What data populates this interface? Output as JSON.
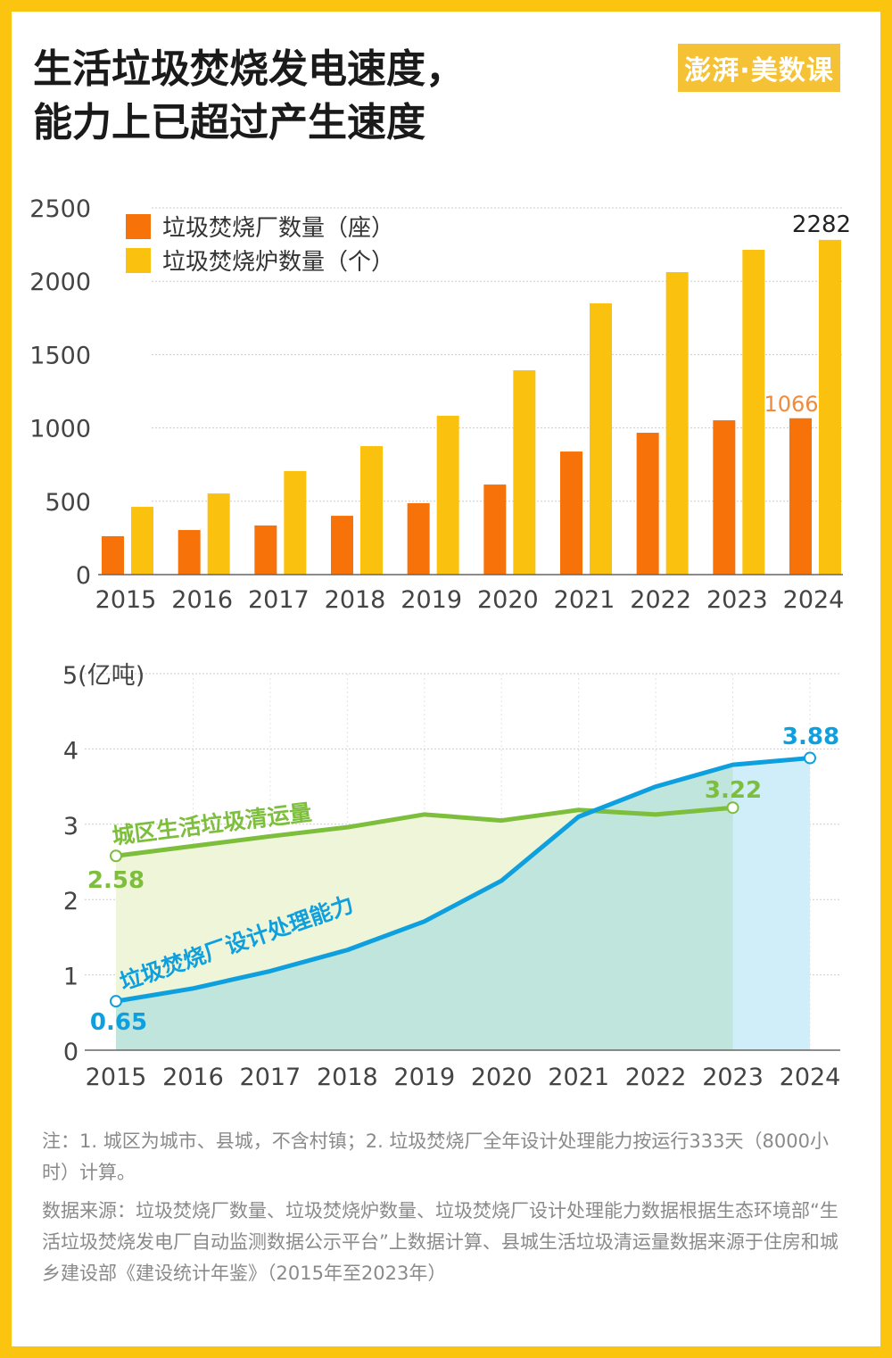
{
  "title_line1": "生活垃圾焚烧发电速度，",
  "title_line2": "能力上已超过产生速度",
  "logo": "澎湃·美数课",
  "chart_data": [
    {
      "type": "bar",
      "categories": [
        "2015",
        "2016",
        "2017",
        "2018",
        "2019",
        "2020",
        "2021",
        "2022",
        "2023",
        "2024"
      ],
      "series": [
        {
          "name": "垃圾焚烧厂数量（座）",
          "color": "#F7730A",
          "values": [
            262,
            304,
            335,
            401,
            487,
            614,
            839,
            967,
            1052,
            1066
          ]
        },
        {
          "name": "垃圾焚烧炉数量（个）",
          "color": "#FBC10F",
          "values": [
            462,
            553,
            706,
            876,
            1083,
            1393,
            1849,
            2062,
            2214,
            2282
          ]
        }
      ],
      "data_labels": {
        "orange_2024": "1066",
        "yellow_2024": "2282"
      },
      "yticks": [
        "0",
        "500",
        "1000",
        "1500",
        "2000",
        "2500"
      ],
      "ylim": [
        0,
        2500
      ],
      "grid": true,
      "legend": "top-left"
    },
    {
      "type": "line",
      "categories": [
        "2015",
        "2016",
        "2017",
        "2018",
        "2019",
        "2020",
        "2021",
        "2022",
        "2023",
        "2024"
      ],
      "ylabel_unit": "5(亿吨)",
      "yticks": [
        "0",
        "1",
        "2",
        "3",
        "4"
      ],
      "ylim": [
        0,
        5
      ],
      "grid": true,
      "series": [
        {
          "name": "城区生活垃圾清运量",
          "color": "#7DBE3C",
          "values": [
            2.58,
            2.71,
            2.84,
            2.96,
            3.13,
            3.05,
            3.19,
            3.13,
            3.22,
            null
          ],
          "start_label": "2.58",
          "end_label": "3.22"
        },
        {
          "name": "垃圾焚烧厂设计处理能力",
          "color": "#0EA0DE",
          "values": [
            0.65,
            0.82,
            1.05,
            1.33,
            1.71,
            2.25,
            3.1,
            3.5,
            3.79,
            3.88
          ],
          "start_label": "0.65",
          "end_label": "3.88"
        }
      ]
    }
  ],
  "notes": {
    "note": "注：1. 城区为城市、县城，不含村镇；2. 垃圾焚烧厂全年设计处理能力按运行333天（8000小时）计算。",
    "source": "数据来源：垃圾焚烧厂数量、垃圾焚烧炉数量、垃圾焚烧厂设计处理能力数据根据生态环境部“生活垃圾焚烧发电厂自动监测数据公示平台”上数据计算、县城生活垃圾清运量数据来源于住房和城乡建设部《建设统计年鉴》（2015年至2023年）"
  }
}
